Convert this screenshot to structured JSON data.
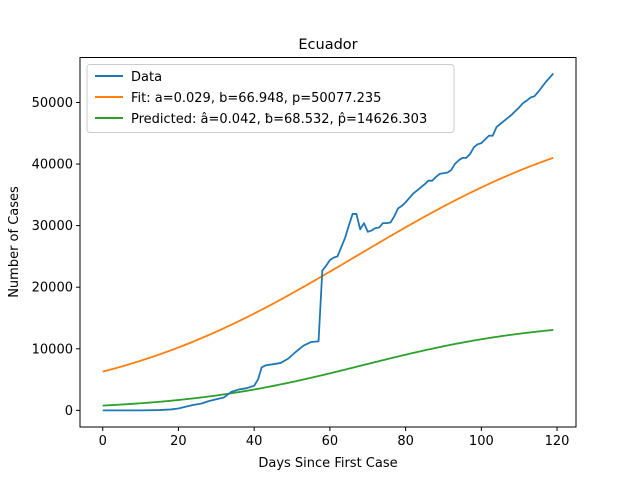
{
  "chart_data": {
    "type": "line",
    "title": "Ecuador",
    "xlabel": "Days Since First Case",
    "ylabel": "Number of Cases",
    "xlim": [
      -6,
      125
    ],
    "ylim": [
      -2700,
      57300
    ],
    "xticks": [
      0,
      20,
      40,
      60,
      80,
      100,
      120
    ],
    "yticks": [
      0,
      10000,
      20000,
      30000,
      40000,
      50000
    ],
    "grid": false,
    "legend_position": "upper-left",
    "series": [
      {
        "name": "Data",
        "color": "#1f77b4",
        "points": [
          [
            0,
            0
          ],
          [
            5,
            0
          ],
          [
            10,
            0
          ],
          [
            15,
            50
          ],
          [
            18,
            150
          ],
          [
            20,
            300
          ],
          [
            22,
            600
          ],
          [
            24,
            900
          ],
          [
            26,
            1100
          ],
          [
            28,
            1500
          ],
          [
            30,
            1800
          ],
          [
            32,
            2100
          ],
          [
            34,
            3000
          ],
          [
            36,
            3400
          ],
          [
            38,
            3600
          ],
          [
            40,
            4000
          ],
          [
            41,
            5000
          ],
          [
            42,
            7000
          ],
          [
            43,
            7300
          ],
          [
            45,
            7500
          ],
          [
            47,
            7700
          ],
          [
            49,
            8400
          ],
          [
            51,
            9500
          ],
          [
            53,
            10500
          ],
          [
            55,
            11100
          ],
          [
            57,
            11200
          ],
          [
            58,
            22700
          ],
          [
            59,
            23500
          ],
          [
            60,
            24400
          ],
          [
            61,
            24800
          ],
          [
            62,
            25000
          ],
          [
            63,
            26500
          ],
          [
            64,
            28000
          ],
          [
            65,
            30000
          ],
          [
            66,
            31900
          ],
          [
            67,
            31900
          ],
          [
            68,
            29400
          ],
          [
            69,
            30400
          ],
          [
            70,
            29000
          ],
          [
            71,
            29200
          ],
          [
            72,
            29600
          ],
          [
            73,
            29700
          ],
          [
            74,
            30400
          ],
          [
            75,
            30400
          ],
          [
            76,
            30500
          ],
          [
            77,
            31500
          ],
          [
            78,
            32800
          ],
          [
            79,
            33200
          ],
          [
            80,
            33800
          ],
          [
            81,
            34500
          ],
          [
            82,
            35200
          ],
          [
            83,
            35700
          ],
          [
            84,
            36200
          ],
          [
            85,
            36700
          ],
          [
            86,
            37300
          ],
          [
            87,
            37300
          ],
          [
            88,
            37900
          ],
          [
            89,
            38400
          ],
          [
            90,
            38500
          ],
          [
            91,
            38600
          ],
          [
            92,
            39000
          ],
          [
            93,
            40000
          ],
          [
            94,
            40600
          ],
          [
            95,
            41000
          ],
          [
            96,
            41000
          ],
          [
            97,
            41600
          ],
          [
            98,
            42700
          ],
          [
            99,
            43200
          ],
          [
            100,
            43400
          ],
          [
            101,
            44000
          ],
          [
            102,
            44600
          ],
          [
            103,
            44600
          ],
          [
            104,
            46000
          ],
          [
            105,
            46500
          ],
          [
            106,
            47000
          ],
          [
            107,
            47500
          ],
          [
            108,
            48000
          ],
          [
            109,
            48600
          ],
          [
            110,
            49200
          ],
          [
            111,
            49900
          ],
          [
            112,
            50300
          ],
          [
            113,
            50800
          ],
          [
            114,
            51000
          ],
          [
            115,
            51700
          ],
          [
            116,
            52500
          ],
          [
            117,
            53300
          ],
          [
            118,
            54000
          ],
          [
            119,
            54700
          ]
        ]
      },
      {
        "name": "Fit: a=0.029, b=66.948, p=50077.235",
        "color": "#ff7f0e",
        "model": {
          "a": 0.029,
          "b": 66.948,
          "p": 50077.235
        }
      },
      {
        "name": "Predicted: â=0.042, ƀ=68.532, p̂=14626.303",
        "color": "#2ca02c",
        "model": {
          "a": 0.042,
          "b": 68.532,
          "p": 14626.303
        }
      }
    ]
  }
}
